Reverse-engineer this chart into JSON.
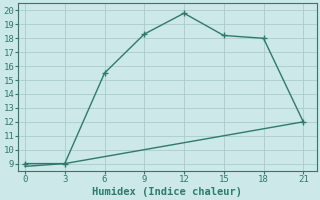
{
  "xlabel": "Humidex (Indice chaleur)",
  "line1_x": [
    0,
    3,
    6,
    9,
    12,
    15,
    18,
    21
  ],
  "line1_y": [
    9,
    9,
    15.5,
    18.3,
    19.8,
    18.2,
    18.0,
    12.0
  ],
  "line2_x": [
    0,
    3,
    21
  ],
  "line2_y": [
    8.8,
    9.0,
    12.0
  ],
  "line_color": "#2d7a6e",
  "bg_color": "#cce8e8",
  "grid_color": "#aacccc",
  "ylim": [
    8.5,
    20.5
  ],
  "xlim": [
    -0.5,
    22
  ],
  "yticks": [
    9,
    10,
    11,
    12,
    13,
    14,
    15,
    16,
    17,
    18,
    19,
    20
  ],
  "xticks": [
    0,
    3,
    6,
    9,
    12,
    15,
    18,
    21
  ],
  "markersize": 4,
  "linewidth": 1.0,
  "xlabel_fontsize": 7.5,
  "tick_fontsize": 6.5
}
